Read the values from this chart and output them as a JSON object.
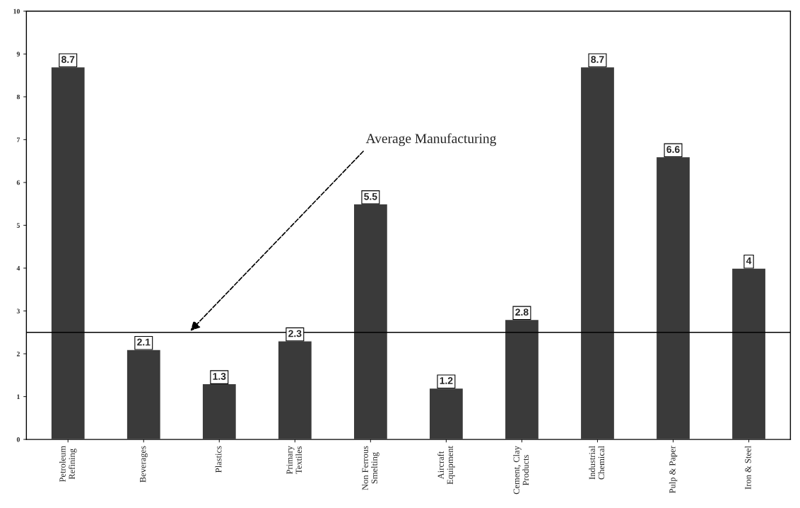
{
  "chart_data": {
    "type": "bar",
    "categories": [
      "Petroleum\nRefining",
      "Beverages",
      "Plastics",
      "Primary\nTextiles",
      "Non Ferrous\nSmelting",
      "Aircraft\nEquipment",
      "Cement, Clay\nProducts",
      "Industrial\nChemical",
      "Pulp & Paper",
      "Iron & Steel"
    ],
    "values": [
      8.7,
      2.1,
      1.3,
      2.3,
      5.5,
      1.2,
      2.8,
      8.7,
      6.6,
      4
    ],
    "color": "#3a3a3a",
    "ylim": [
      0,
      10
    ],
    "yticks": [
      0,
      1,
      2,
      3,
      4,
      5,
      6,
      7,
      8,
      9,
      10
    ],
    "data_labels": true,
    "grid": false,
    "ref_lines": [
      {
        "axis": "y",
        "value": 2.5,
        "label": "Average Manufacturing",
        "color": "#000000",
        "line_style": "solid"
      }
    ]
  }
}
